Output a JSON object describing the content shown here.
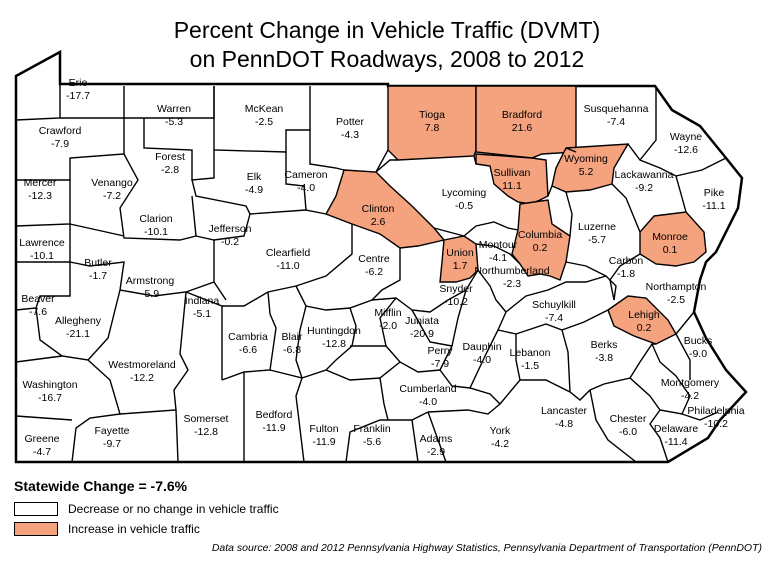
{
  "title_line1": "Percent Change in Vehicle Traffic (DVMT)",
  "title_line2": "on PennDOT Roadways, 2008 to 2012",
  "statewide_change": "Statewide Change = -7.6%",
  "legend": [
    {
      "label": "Decrease or no change in vehicle traffic",
      "color": "#ffffff"
    },
    {
      "label": "Increase in vehicle traffic",
      "color": "#f5a27e"
    }
  ],
  "source": "Data source: 2008 and 2012 Pennsylvania Highway Statistics, Pennsylvania Department of Transportation (PennDOT)",
  "colors": {
    "increase": "#f5a27e",
    "decrease": "#ffffff",
    "border": "#000000"
  },
  "counties": [
    {
      "name": "Erie",
      "change": "-17.7",
      "increase": false
    },
    {
      "name": "Crawford",
      "change": "-7.9",
      "increase": false
    },
    {
      "name": "Warren",
      "change": "-5.3",
      "increase": false
    },
    {
      "name": "McKean",
      "change": "-2.5",
      "increase": false
    },
    {
      "name": "Potter",
      "change": "-4.3",
      "increase": false
    },
    {
      "name": "Tioga",
      "change": "7.8",
      "increase": true
    },
    {
      "name": "Bradford",
      "change": "21.6",
      "increase": true
    },
    {
      "name": "Susquehanna",
      "change": "-7.4",
      "increase": false
    },
    {
      "name": "Wayne",
      "change": "-12.6",
      "increase": false
    },
    {
      "name": "Mercer",
      "change": "-12.3",
      "increase": false
    },
    {
      "name": "Venango",
      "change": "-7.2",
      "increase": false
    },
    {
      "name": "Forest",
      "change": "-2.8",
      "increase": false
    },
    {
      "name": "Elk",
      "change": "-4.9",
      "increase": false
    },
    {
      "name": "Cameron",
      "change": "-4.0",
      "increase": false
    },
    {
      "name": "Clinton",
      "change": "2.6",
      "increase": true
    },
    {
      "name": "Lycoming",
      "change": "-0.5",
      "increase": false
    },
    {
      "name": "Sullivan",
      "change": "11.1",
      "increase": true
    },
    {
      "name": "Wyoming",
      "change": "5.2",
      "increase": true
    },
    {
      "name": "Lackawanna",
      "change": "-9.2",
      "increase": false
    },
    {
      "name": "Pike",
      "change": "-11.1",
      "increase": false
    },
    {
      "name": "Clarion",
      "change": "-10.1",
      "increase": false
    },
    {
      "name": "Jefferson",
      "change": "-0.2",
      "increase": false
    },
    {
      "name": "Lawrence",
      "change": "-10.1",
      "increase": false
    },
    {
      "name": "Butler",
      "change": "-1.7",
      "increase": false
    },
    {
      "name": "Clearfield",
      "change": "-11.0",
      "increase": false
    },
    {
      "name": "Centre",
      "change": "-6.2",
      "increase": false
    },
    {
      "name": "Union",
      "change": "1.7",
      "increase": true
    },
    {
      "name": "Montour",
      "change": "-4.1",
      "increase": false
    },
    {
      "name": "Columbia",
      "change": "0.2",
      "increase": true
    },
    {
      "name": "Luzerne",
      "change": "-5.7",
      "increase": false
    },
    {
      "name": "Monroe",
      "change": "0.1",
      "increase": true
    },
    {
      "name": "Carbon",
      "change": "-1.8",
      "increase": false
    },
    {
      "name": "Northumberland",
      "change": "-2.3",
      "increase": false
    },
    {
      "name": "Armstrong",
      "change": "-5.9",
      "increase": false
    },
    {
      "name": "Beaver",
      "change": "-7.6",
      "increase": false
    },
    {
      "name": "Indiana",
      "change": "-5.1",
      "increase": false
    },
    {
      "name": "Snyder",
      "change": "-10.2",
      "increase": false
    },
    {
      "name": "Mifflin",
      "change": "-2.0",
      "increase": false
    },
    {
      "name": "Juniata",
      "change": "-20.9",
      "increase": false
    },
    {
      "name": "Schuylkill",
      "change": "-7.4",
      "increase": false
    },
    {
      "name": "Northampton",
      "change": "-2.5",
      "increase": false
    },
    {
      "name": "Lehigh",
      "change": "0.2",
      "increase": true
    },
    {
      "name": "Allegheny",
      "change": "-21.1",
      "increase": false
    },
    {
      "name": "Cambria",
      "change": "-6.6",
      "increase": false
    },
    {
      "name": "Blair",
      "change": "-6.8",
      "increase": false
    },
    {
      "name": "Huntingdon",
      "change": "-12.8",
      "increase": false
    },
    {
      "name": "Perry",
      "change": "-7.9",
      "increase": false
    },
    {
      "name": "Dauphin",
      "change": "-4.0",
      "increase": false
    },
    {
      "name": "Lebanon",
      "change": "-1.5",
      "increase": false
    },
    {
      "name": "Berks",
      "change": "-3.8",
      "increase": false
    },
    {
      "name": "Bucks",
      "change": "-9.0",
      "increase": false
    },
    {
      "name": "Washington",
      "change": "-16.7",
      "increase": false
    },
    {
      "name": "Westmoreland",
      "change": "-12.2",
      "increase": false
    },
    {
      "name": "Cumberland",
      "change": "-4.0",
      "increase": false
    },
    {
      "name": "Montgomery",
      "change": "-4.2",
      "increase": false
    },
    {
      "name": "Somerset",
      "change": "-12.8",
      "increase": false
    },
    {
      "name": "Bedford",
      "change": "-11.9",
      "increase": false
    },
    {
      "name": "Fulton",
      "change": "-11.9",
      "increase": false
    },
    {
      "name": "Franklin",
      "change": "-5.6",
      "increase": false
    },
    {
      "name": "Lancaster",
      "change": "-4.8",
      "increase": false
    },
    {
      "name": "Chester",
      "change": "-6.0",
      "increase": false
    },
    {
      "name": "Philadelphia",
      "change": "-10.2",
      "increase": false
    },
    {
      "name": "Greene",
      "change": "-4.7",
      "increase": false
    },
    {
      "name": "Fayette",
      "change": "-9.7",
      "increase": false
    },
    {
      "name": "Adams",
      "change": "-2.9",
      "increase": false
    },
    {
      "name": "York",
      "change": "-4.2",
      "increase": false
    },
    {
      "name": "Delaware",
      "change": "-11.4",
      "increase": false
    }
  ]
}
